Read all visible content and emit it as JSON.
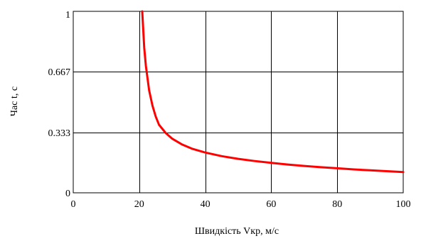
{
  "chart_data": {
    "type": "line",
    "xlabel": "Швидкість Vкр, м/с",
    "ylabel": "Час t, с",
    "xlim": [
      0,
      100
    ],
    "ylim": [
      0,
      1
    ],
    "x_ticks": [
      0,
      20,
      40,
      60,
      80,
      100
    ],
    "x_tick_labels": [
      "0",
      "20",
      "40",
      "60",
      "80",
      "100"
    ],
    "y_ticks": [
      0,
      0.333,
      0.667,
      1
    ],
    "y_tick_labels": [
      "0",
      "0.333",
      "0.667",
      "1"
    ],
    "grid": true,
    "series": [
      {
        "color": "#ff0000",
        "x": [
          20.9,
          21.5,
          22,
          23,
          24,
          25,
          26,
          28,
          30,
          33,
          36,
          40,
          45,
          50,
          55,
          60,
          65,
          70,
          75,
          80,
          85,
          90,
          95,
          100
        ],
        "y": [
          1.0,
          0.8,
          0.7,
          0.565,
          0.48,
          0.42,
          0.375,
          0.33,
          0.298,
          0.266,
          0.243,
          0.222,
          0.202,
          0.187,
          0.175,
          0.165,
          0.156,
          0.148,
          0.141,
          0.135,
          0.129,
          0.124,
          0.119,
          0.114
        ]
      }
    ]
  }
}
